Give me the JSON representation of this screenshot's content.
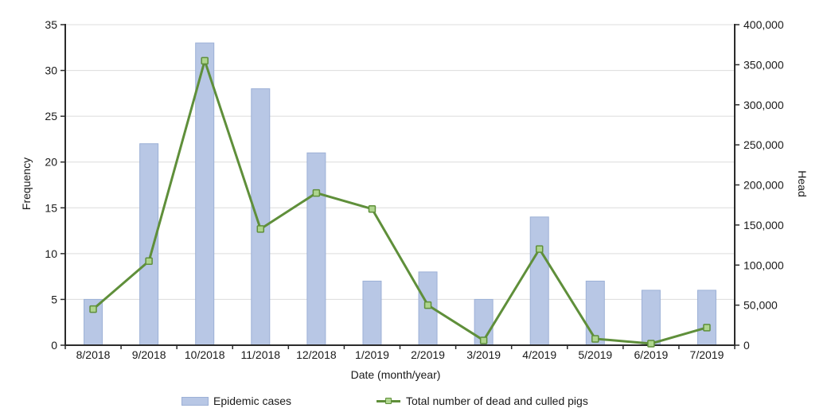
{
  "figure": {
    "xlabel": "Date (month/year)",
    "ylabel_left": "Frequency",
    "ylabel_right": "Head",
    "legend": [
      {
        "label": "Epidemic cases",
        "swatch": "bar-swatch"
      },
      {
        "label": "Total number of dead and culled pigs",
        "swatch": "line-swatch"
      }
    ]
  },
  "chart_data": {
    "type": "bar",
    "subtype": "combo-bar-line-dual-axis",
    "title": "",
    "xlabel": "Date (month/year)",
    "ylabel_left": "Frequency",
    "ylabel_right": "Head",
    "categories": [
      "8/2018",
      "9/2018",
      "10/2018",
      "11/2018",
      "12/2018",
      "1/2019",
      "2/2019",
      "3/2019",
      "4/2019",
      "5/2019",
      "6/2019",
      "7/2019"
    ],
    "series": [
      {
        "name": "Epidemic cases",
        "type": "bar",
        "axis": "left",
        "values": [
          5,
          22,
          33,
          28,
          21,
          7,
          8,
          5,
          14,
          7,
          6,
          6
        ]
      },
      {
        "name": "Total number of dead and culled pigs",
        "type": "line",
        "axis": "right",
        "values": [
          45000,
          105000,
          355000,
          145000,
          190000,
          170000,
          50000,
          6000,
          120000,
          8000,
          2000,
          22000
        ]
      }
    ],
    "y_left_axis": {
      "min": 0,
      "max": 35,
      "step": 5
    },
    "y_right_axis": {
      "min": 0,
      "max": 400000,
      "step": 50000
    },
    "grid": "horizontal-on",
    "legend_position": "bottom"
  },
  "colors": {
    "bar_fill": "#b8c7e5",
    "bar_border": "#9cb0d6",
    "line": "#5f8f3a",
    "marker_fill": "#aed58e",
    "marker_border": "#5f8f3a",
    "gridline": "#dcdcdc",
    "axis": "#2b2b2b",
    "text": "#1a1a1a"
  }
}
